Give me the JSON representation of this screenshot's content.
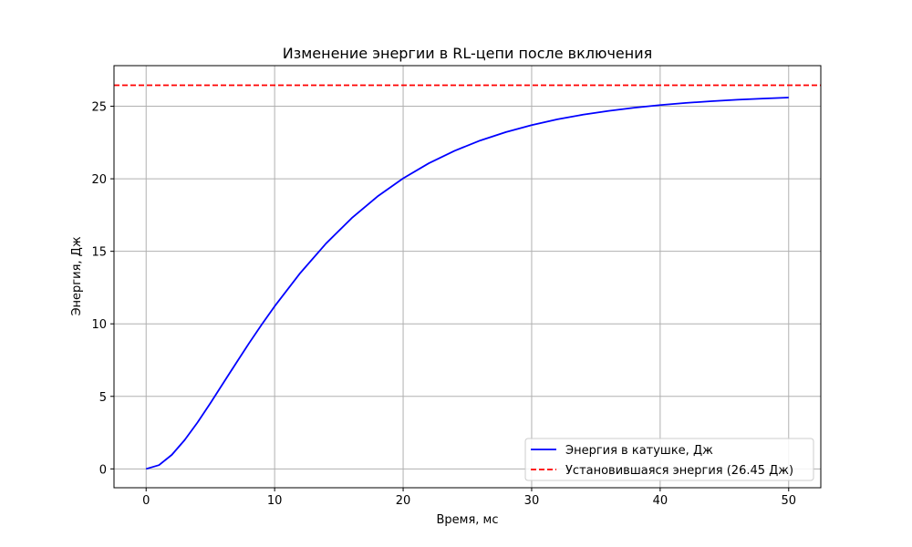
{
  "chart_data": {
    "type": "line",
    "title": "Изменение энергии в RL-цепи после включения",
    "xlabel": "Время, мс",
    "ylabel": "Энергия, Дж",
    "xlim": [
      -2.5,
      52.5
    ],
    "ylim": [
      -1.3,
      27.8
    ],
    "xticks": [
      0,
      10,
      20,
      30,
      40,
      50
    ],
    "yticks": [
      0,
      5,
      10,
      15,
      20,
      25
    ],
    "grid": true,
    "legend_position": "lower-right",
    "series": [
      {
        "name": "Энергия в катушке, Дж",
        "color": "#0000ff",
        "style": "solid",
        "x": [
          0,
          1,
          2,
          3,
          4,
          5,
          6,
          7,
          8,
          9,
          10,
          12,
          14,
          16,
          18,
          20,
          22,
          24,
          26,
          28,
          30,
          32,
          34,
          36,
          38,
          40,
          42,
          44,
          46,
          48,
          50
        ],
        "y": [
          0,
          0.26,
          0.97,
          1.99,
          3.2,
          4.53,
          5.91,
          7.29,
          8.65,
          9.96,
          11.21,
          13.51,
          15.54,
          17.29,
          18.78,
          20.03,
          21.07,
          21.93,
          22.64,
          23.22,
          23.7,
          24.1,
          24.42,
          24.68,
          24.9,
          25.08,
          25.23,
          25.35,
          25.45,
          25.53,
          25.6
        ]
      },
      {
        "name": "Установившаяся энергия (26.45 Дж)",
        "color": "#ff0000",
        "style": "dashed",
        "y_constant": 26.45
      }
    ]
  }
}
